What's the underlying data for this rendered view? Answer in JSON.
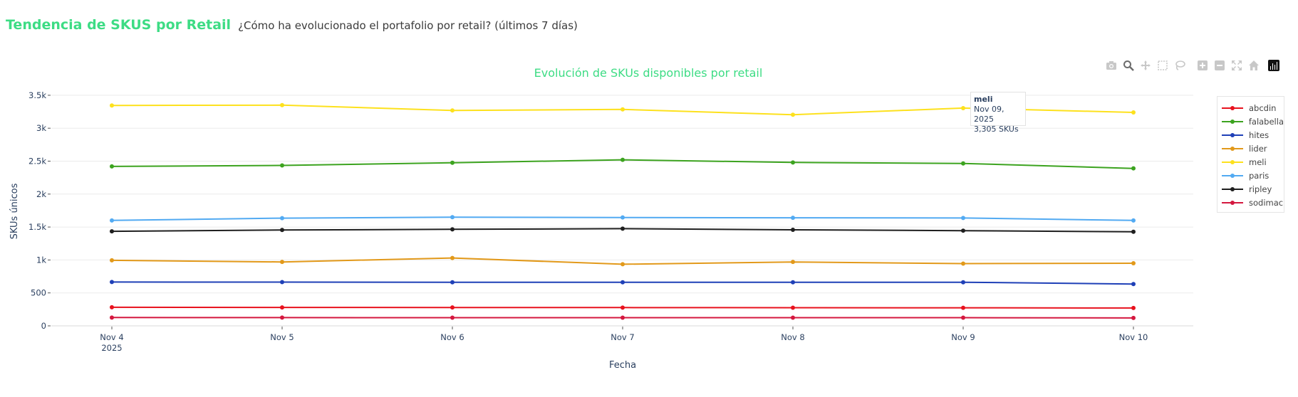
{
  "header": {
    "title": "Tendencia de SKUS por Retail",
    "subtitle": "¿Cómo ha evolucionado el portafolio por retail? (últimos 7 días)"
  },
  "modebar": {
    "icons": [
      "camera-icon",
      "zoom-icon",
      "pan-icon",
      "box-select-icon",
      "lasso-icon",
      "zoom-in-icon",
      "zoom-out-icon",
      "autoscale-icon",
      "reset-axes-icon",
      "plotly-logo-icon"
    ]
  },
  "tooltip": {
    "series": "meli",
    "date": "Nov 09, 2025",
    "value": "3,305 SKUs"
  },
  "chart_data": {
    "type": "line",
    "title": "Evolución de SKUs disponibles por retail",
    "xlabel": "Fecha",
    "ylabel": "SKUs únicos",
    "x": [
      "Nov 4",
      "Nov 5",
      "Nov 6",
      "Nov 7",
      "Nov 8",
      "Nov 9",
      "Nov 10"
    ],
    "x_year_label": "2025",
    "ylim": [
      0,
      3650
    ],
    "yticks": [
      0,
      500,
      1000,
      1500,
      2000,
      2500,
      3000,
      3500
    ],
    "ytick_labels": [
      "0",
      "500",
      "1k",
      "1.5k",
      "2k",
      "2.5k",
      "3k",
      "3.5k"
    ],
    "grid": true,
    "legend_position": "right",
    "series": [
      {
        "name": "abcdin",
        "color": "#e8121e",
        "values": [
          282,
          280,
          279,
          277,
          275,
          274,
          271
        ]
      },
      {
        "name": "falabella",
        "color": "#3ca31f",
        "values": [
          2420,
          2435,
          2475,
          2520,
          2480,
          2465,
          2390
        ]
      },
      {
        "name": "hites",
        "color": "#1f40b7",
        "values": [
          665,
          664,
          662,
          662,
          662,
          662,
          635
        ]
      },
      {
        "name": "lider",
        "color": "#e2991a",
        "values": [
          995,
          970,
          1030,
          935,
          970,
          945,
          950
        ]
      },
      {
        "name": "meli",
        "color": "#fde11d",
        "values": [
          3345,
          3350,
          3270,
          3285,
          3205,
          3305,
          3240
        ]
      },
      {
        "name": "paris",
        "color": "#52aaf2",
        "values": [
          1600,
          1635,
          1650,
          1645,
          1640,
          1637,
          1600
        ]
      },
      {
        "name": "ripley",
        "color": "#1f1f1f",
        "values": [
          1435,
          1455,
          1465,
          1475,
          1458,
          1445,
          1428
        ]
      },
      {
        "name": "sodimac",
        "color": "#d4183f",
        "values": [
          126,
          125,
          124,
          124,
          124,
          124,
          120
        ]
      }
    ]
  }
}
